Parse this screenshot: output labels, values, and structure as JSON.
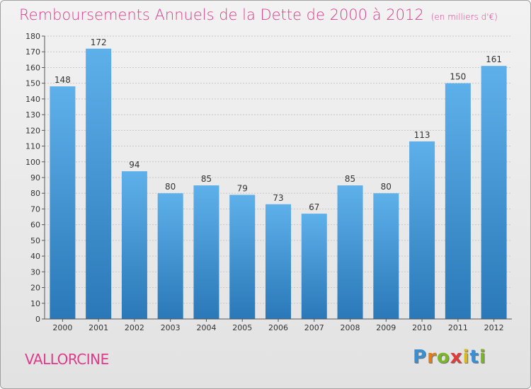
{
  "header": {
    "title": "Remboursements Annuels de la Dette de 2000 à 2012",
    "unit": "(en milliers d'€)"
  },
  "footer": {
    "commune": "VALLORCINE",
    "logo_letters": [
      {
        "ch": "P",
        "color": "#3a8fd0"
      },
      {
        "ch": "r",
        "color": "#e07d1a"
      },
      {
        "ch": "o",
        "color": "#7ab52a"
      },
      {
        "ch": "x",
        "color": "#e03c3c"
      },
      {
        "ch": "i",
        "color": "#d9b81a"
      },
      {
        "ch": "t",
        "color": "#3a8fd0"
      },
      {
        "ch": "i",
        "color": "#7ab52a"
      }
    ]
  },
  "colors": {
    "bar_top": "#5aacE6",
    "bar_bottom": "#2a78b8",
    "grid": "#c8c8c8",
    "axis": "#555555",
    "accent": "#dc3c8a"
  },
  "chart_data": {
    "type": "bar",
    "categories": [
      "2000",
      "2001",
      "2002",
      "2003",
      "2004",
      "2005",
      "2006",
      "2007",
      "2008",
      "2009",
      "2010",
      "2011",
      "2012"
    ],
    "values": [
      148,
      172,
      94,
      80,
      85,
      79,
      73,
      67,
      85,
      80,
      113,
      150,
      161
    ],
    "ylim": [
      0,
      180
    ],
    "yticks": [
      0,
      10,
      20,
      30,
      40,
      50,
      60,
      70,
      80,
      90,
      100,
      110,
      120,
      130,
      140,
      150,
      160,
      170,
      180
    ],
    "grid": true,
    "data_labels": true
  }
}
